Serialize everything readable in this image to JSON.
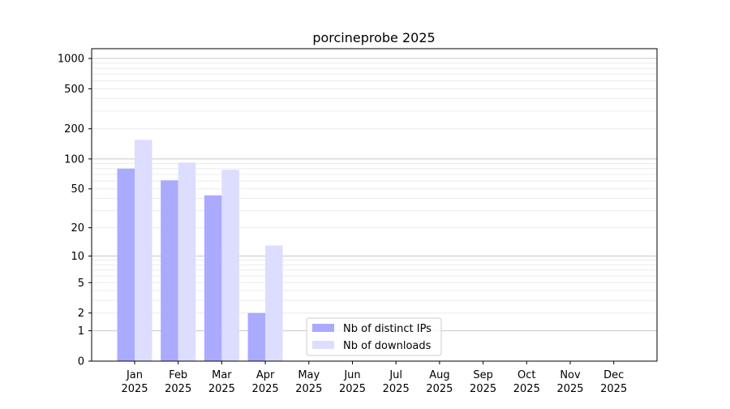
{
  "chart_data": {
    "type": "bar",
    "title": "porcineprobe 2025",
    "xlabel": "",
    "ylabel": "",
    "y_scale": "log10(y+1)",
    "ylim": [
      0,
      1200
    ],
    "yticks": [
      0,
      1,
      2,
      5,
      10,
      20,
      50,
      100,
      200,
      500,
      1000
    ],
    "grid": true,
    "legend_position": "lower-center",
    "categories": [
      [
        "Jan",
        "2025"
      ],
      [
        "Feb",
        "2025"
      ],
      [
        "Mar",
        "2025"
      ],
      [
        "Apr",
        "2025"
      ],
      [
        "May",
        "2025"
      ],
      [
        "Jun",
        "2025"
      ],
      [
        "Jul",
        "2025"
      ],
      [
        "Aug",
        "2025"
      ],
      [
        "Sep",
        "2025"
      ],
      [
        "Oct",
        "2025"
      ],
      [
        "Nov",
        "2025"
      ],
      [
        "Dec",
        "2025"
      ]
    ],
    "series": [
      {
        "name": "Nb of distinct IPs",
        "color": "#aaaaff",
        "values": [
          80,
          61,
          43,
          2,
          0,
          0,
          0,
          0,
          0,
          0,
          0,
          0
        ]
      },
      {
        "name": "Nb of downloads",
        "color": "#ddddff",
        "values": [
          155,
          92,
          78,
          13,
          0,
          0,
          0,
          0,
          0,
          0,
          0,
          0
        ]
      }
    ]
  }
}
